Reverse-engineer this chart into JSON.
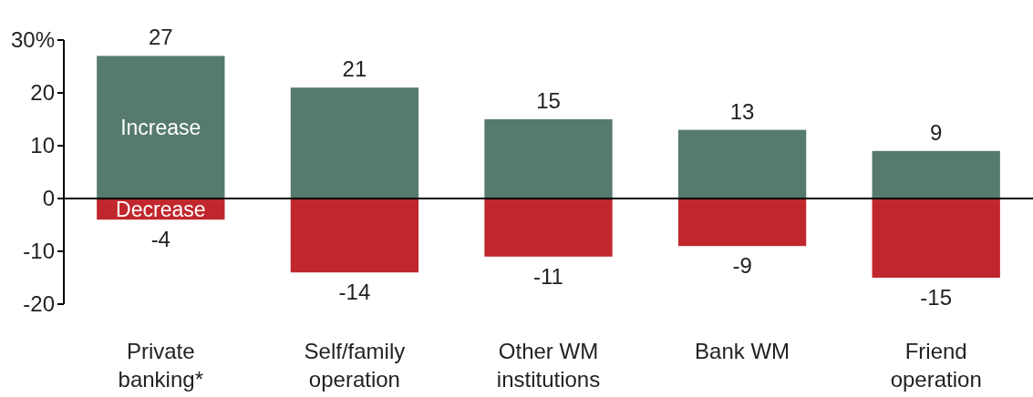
{
  "chart_data": {
    "type": "bar",
    "stacked": true,
    "categories": [
      "Private\nbanking*",
      "Self/family\noperation",
      "Other WM\ninstitutions",
      "Bank WM",
      "Friend\noperation"
    ],
    "series": [
      {
        "name": "Increase",
        "color": "#567a6e",
        "values": [
          27,
          21,
          15,
          13,
          9
        ]
      },
      {
        "name": "Decrease",
        "color": "#c0272d",
        "values": [
          -4,
          -14,
          -11,
          -9,
          -15
        ]
      }
    ],
    "ylim": [
      -20,
      30
    ],
    "yticks": [
      -20,
      -10,
      0,
      10,
      20,
      {
        "value": 30,
        "label": "30%"
      }
    ],
    "data_labels": true,
    "legend": false
  }
}
